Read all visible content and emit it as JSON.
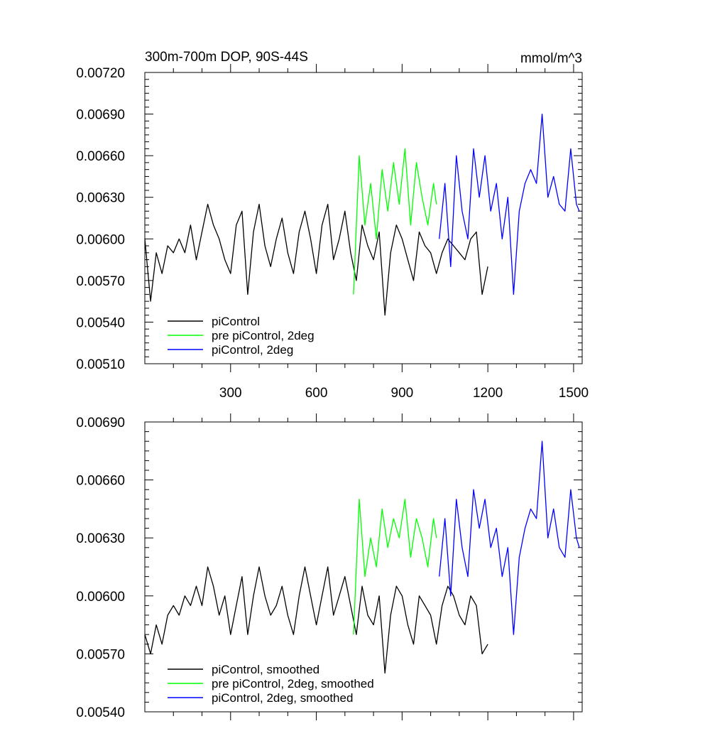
{
  "chart_data": [
    {
      "type": "line",
      "title": "300m-700m DOP, 90S-44S",
      "units": "mmol/m^3",
      "xlim": [
        0,
        1530
      ],
      "ylim": [
        0.0051,
        0.0072
      ],
      "x_ticks": [
        300,
        600,
        900,
        1200,
        1500
      ],
      "x_tick_labels": [
        "300",
        "600",
        "900",
        "1200",
        "1500"
      ],
      "y_ticks": [
        0.0051,
        0.0054,
        0.0057,
        0.006,
        0.0063,
        0.0066,
        0.0069,
        0.0072
      ],
      "y_tick_labels": [
        "0.00510",
        "0.00540",
        "0.00570",
        "0.00600",
        "0.00630",
        "0.00660",
        "0.00690",
        "0.00720"
      ],
      "legend_position": "bottom-left",
      "series": [
        {
          "name": "piControl",
          "color": "#000000",
          "x": [
            0,
            20,
            40,
            60,
            80,
            100,
            120,
            140,
            160,
            180,
            200,
            220,
            240,
            260,
            280,
            300,
            320,
            340,
            360,
            380,
            400,
            420,
            440,
            460,
            480,
            500,
            520,
            540,
            560,
            580,
            600,
            620,
            640,
            660,
            680,
            700,
            720,
            740,
            760,
            780,
            800,
            820,
            840,
            860,
            880,
            900,
            920,
            940,
            960,
            980,
            1000,
            1020,
            1040,
            1060,
            1080,
            1100,
            1120,
            1140,
            1160,
            1180,
            1200
          ],
          "y": [
            0.006,
            0.00555,
            0.0059,
            0.00575,
            0.00595,
            0.0059,
            0.006,
            0.0059,
            0.0061,
            0.00585,
            0.00605,
            0.00625,
            0.0061,
            0.006,
            0.00585,
            0.00575,
            0.0061,
            0.0062,
            0.0056,
            0.00605,
            0.00625,
            0.00595,
            0.0058,
            0.006,
            0.00615,
            0.0059,
            0.00575,
            0.00605,
            0.0062,
            0.006,
            0.00575,
            0.0061,
            0.00625,
            0.00585,
            0.006,
            0.0062,
            0.0059,
            0.0057,
            0.0061,
            0.00595,
            0.00585,
            0.00605,
            0.00545,
            0.0059,
            0.0061,
            0.006,
            0.00585,
            0.0057,
            0.00605,
            0.00595,
            0.0059,
            0.00575,
            0.0059,
            0.006,
            0.00595,
            0.0059,
            0.00585,
            0.006,
            0.00605,
            0.0056,
            0.0058
          ]
        },
        {
          "name": "pre piControl, 2deg",
          "color": "#00ff00",
          "x": [
            730,
            750,
            770,
            790,
            810,
            830,
            850,
            870,
            890,
            910,
            930,
            950,
            970,
            990,
            1010,
            1020
          ],
          "y": [
            0.0056,
            0.0066,
            0.0061,
            0.0064,
            0.006,
            0.0065,
            0.0062,
            0.00655,
            0.00625,
            0.00665,
            0.0061,
            0.00655,
            0.0063,
            0.0061,
            0.0064,
            0.00625
          ]
        },
        {
          "name": "piControl, 2deg",
          "color": "#0000ff",
          "x": [
            1030,
            1050,
            1070,
            1090,
            1110,
            1130,
            1150,
            1170,
            1190,
            1210,
            1230,
            1250,
            1270,
            1290,
            1310,
            1330,
            1350,
            1370,
            1390,
            1410,
            1430,
            1450,
            1470,
            1490,
            1510,
            1520
          ],
          "y": [
            0.006,
            0.0064,
            0.0058,
            0.0066,
            0.0062,
            0.006,
            0.00665,
            0.0063,
            0.0066,
            0.0062,
            0.0064,
            0.006,
            0.0063,
            0.0056,
            0.0062,
            0.0064,
            0.0065,
            0.0064,
            0.0069,
            0.0063,
            0.00645,
            0.00625,
            0.0062,
            0.00665,
            0.00625,
            0.0062
          ]
        }
      ]
    },
    {
      "type": "line",
      "xlim": [
        0,
        1530
      ],
      "ylim": [
        0.0054,
        0.0069
      ],
      "x_ticks": [
        300,
        600,
        900,
        1200,
        1500
      ],
      "y_ticks": [
        0.0054,
        0.0057,
        0.006,
        0.0063,
        0.0066,
        0.0069
      ],
      "y_tick_labels": [
        "0.00540",
        "0.00570",
        "0.00600",
        "0.00630",
        "0.00660",
        "0.00690"
      ],
      "legend_position": "bottom-left",
      "series": [
        {
          "name": "piControl, smoothed",
          "color": "#000000",
          "x": [
            0,
            20,
            40,
            60,
            80,
            100,
            120,
            140,
            160,
            180,
            200,
            220,
            240,
            260,
            280,
            300,
            320,
            340,
            360,
            380,
            400,
            420,
            440,
            460,
            480,
            500,
            520,
            540,
            560,
            580,
            600,
            620,
            640,
            660,
            680,
            700,
            720,
            740,
            760,
            780,
            800,
            820,
            840,
            860,
            880,
            900,
            920,
            940,
            960,
            980,
            1000,
            1020,
            1040,
            1060,
            1080,
            1100,
            1120,
            1140,
            1160,
            1180,
            1200
          ],
          "y": [
            0.0058,
            0.0057,
            0.00585,
            0.00575,
            0.0059,
            0.00595,
            0.0059,
            0.006,
            0.00595,
            0.00605,
            0.00595,
            0.00615,
            0.00605,
            0.0059,
            0.006,
            0.0058,
            0.00595,
            0.0061,
            0.0058,
            0.006,
            0.00615,
            0.006,
            0.0059,
            0.00595,
            0.00605,
            0.0059,
            0.0058,
            0.006,
            0.00615,
            0.006,
            0.00585,
            0.006,
            0.00615,
            0.0059,
            0.006,
            0.0061,
            0.00595,
            0.0058,
            0.00605,
            0.0059,
            0.00585,
            0.006,
            0.0056,
            0.0059,
            0.00605,
            0.006,
            0.00585,
            0.00575,
            0.006,
            0.00595,
            0.0059,
            0.00575,
            0.00595,
            0.00605,
            0.006,
            0.0059,
            0.00585,
            0.006,
            0.00595,
            0.0057,
            0.00575
          ]
        },
        {
          "name": "pre piControl, 2deg, smoothed",
          "color": "#00ff00",
          "x": [
            730,
            750,
            770,
            790,
            810,
            830,
            850,
            870,
            890,
            910,
            930,
            950,
            970,
            990,
            1010,
            1020
          ],
          "y": [
            0.0058,
            0.0065,
            0.0061,
            0.0063,
            0.00615,
            0.00645,
            0.00625,
            0.0064,
            0.0063,
            0.0065,
            0.0062,
            0.0064,
            0.0063,
            0.00615,
            0.0064,
            0.0063
          ]
        },
        {
          "name": "piControl, 2deg, smoothed",
          "color": "#0000ff",
          "x": [
            1030,
            1050,
            1070,
            1090,
            1110,
            1130,
            1150,
            1170,
            1190,
            1210,
            1230,
            1250,
            1270,
            1290,
            1310,
            1330,
            1350,
            1370,
            1390,
            1410,
            1430,
            1450,
            1470,
            1490,
            1510,
            1520
          ],
          "y": [
            0.0061,
            0.0064,
            0.006,
            0.0065,
            0.00625,
            0.0061,
            0.00655,
            0.00635,
            0.0065,
            0.00625,
            0.00635,
            0.0061,
            0.00625,
            0.0058,
            0.0062,
            0.00635,
            0.00645,
            0.0064,
            0.0068,
            0.0063,
            0.00645,
            0.00625,
            0.0062,
            0.00655,
            0.0063,
            0.00625
          ]
        }
      ]
    }
  ]
}
